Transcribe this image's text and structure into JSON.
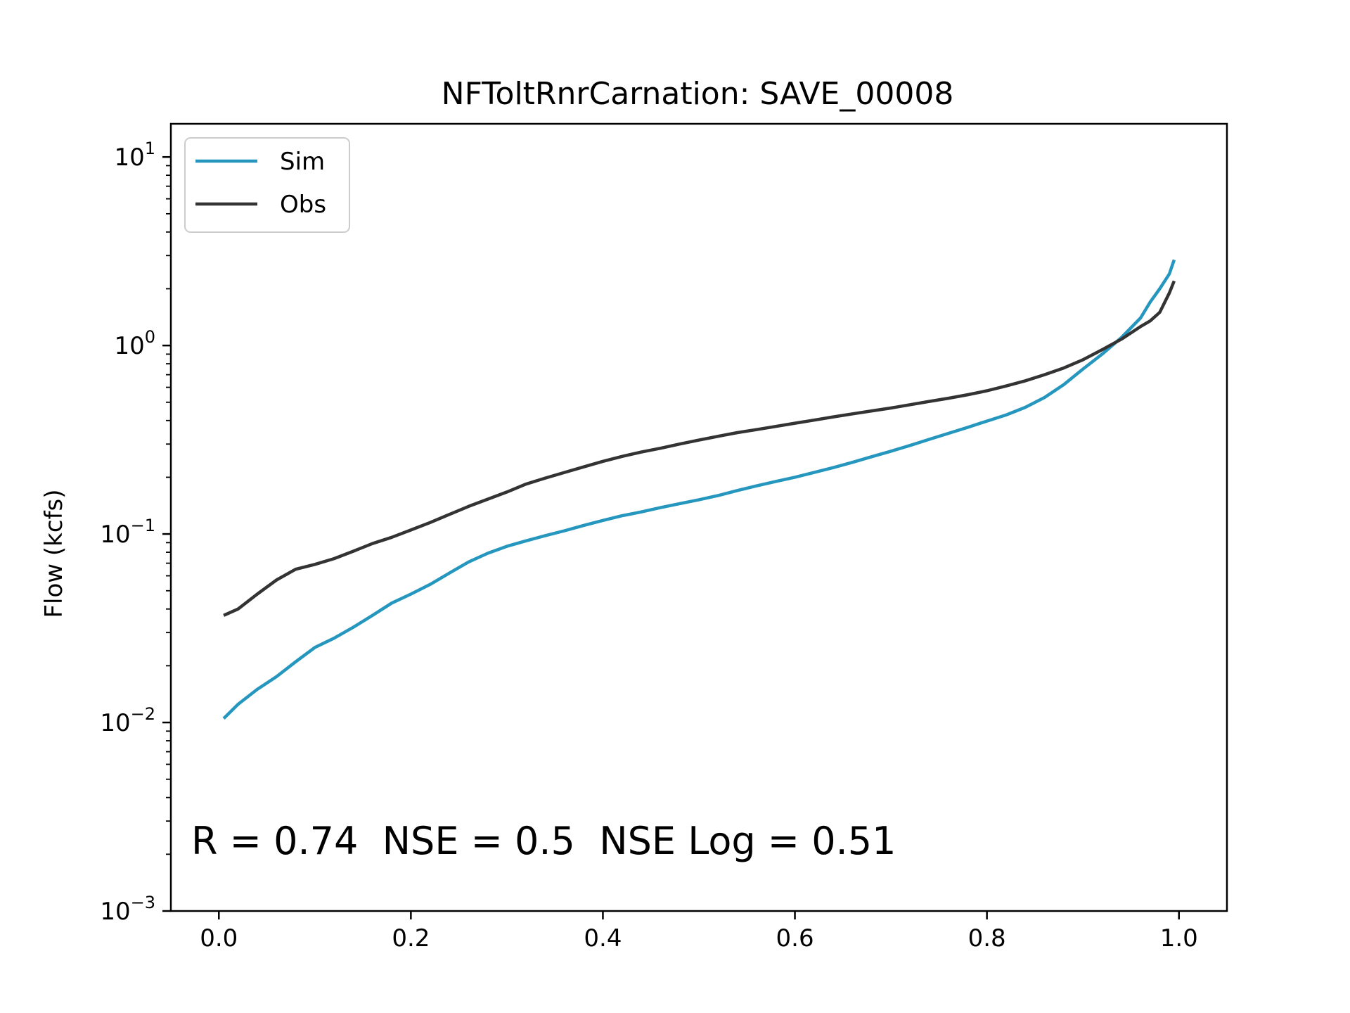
{
  "chart_data": {
    "type": "line",
    "title": "NFToltRnrCarnation: SAVE_00008",
    "xlabel": "",
    "ylabel": "Flow (kcfs)",
    "xlim": [
      -0.05,
      1.05
    ],
    "ylim": [
      0.001,
      15
    ],
    "yscale": "log",
    "grid": false,
    "legend_position": "upper-left",
    "xticks": [
      {
        "value": 0.0,
        "label": "0.0"
      },
      {
        "value": 0.2,
        "label": "0.2"
      },
      {
        "value": 0.4,
        "label": "0.4"
      },
      {
        "value": 0.6,
        "label": "0.6"
      },
      {
        "value": 0.8,
        "label": "0.8"
      },
      {
        "value": 1.0,
        "label": "1.0"
      }
    ],
    "yticks": [
      {
        "value": 0.001,
        "base": "10",
        "exp": "−3"
      },
      {
        "value": 0.01,
        "base": "10",
        "exp": "−2"
      },
      {
        "value": 0.1,
        "base": "10",
        "exp": "−1"
      },
      {
        "value": 1,
        "base": "10",
        "exp": "0"
      },
      {
        "value": 10,
        "base": "10",
        "exp": "1"
      }
    ],
    "annotation": "R = 0.74  NSE = 0.5  NSE Log = 0.51",
    "series": [
      {
        "name": "Sim",
        "color": "#2596be",
        "x": [
          0.005,
          0.02,
          0.04,
          0.06,
          0.08,
          0.1,
          0.12,
          0.14,
          0.16,
          0.18,
          0.2,
          0.22,
          0.24,
          0.26,
          0.28,
          0.3,
          0.32,
          0.34,
          0.36,
          0.38,
          0.4,
          0.42,
          0.44,
          0.46,
          0.48,
          0.5,
          0.52,
          0.54,
          0.56,
          0.58,
          0.6,
          0.62,
          0.64,
          0.66,
          0.68,
          0.7,
          0.72,
          0.74,
          0.76,
          0.78,
          0.8,
          0.82,
          0.84,
          0.86,
          0.88,
          0.9,
          0.92,
          0.94,
          0.96,
          0.97,
          0.98,
          0.99,
          0.995
        ],
        "y": [
          0.0105,
          0.0125,
          0.015,
          0.0175,
          0.021,
          0.025,
          0.028,
          0.032,
          0.037,
          0.043,
          0.048,
          0.054,
          0.062,
          0.071,
          0.079,
          0.086,
          0.092,
          0.098,
          0.104,
          0.111,
          0.118,
          0.125,
          0.131,
          0.138,
          0.145,
          0.152,
          0.16,
          0.17,
          0.18,
          0.19,
          0.2,
          0.212,
          0.225,
          0.24,
          0.257,
          0.275,
          0.295,
          0.318,
          0.342,
          0.368,
          0.397,
          0.428,
          0.47,
          0.53,
          0.62,
          0.75,
          0.9,
          1.1,
          1.4,
          1.7,
          2.0,
          2.4,
          2.85
        ]
      },
      {
        "name": "Obs",
        "color": "#333333",
        "x": [
          0.005,
          0.02,
          0.04,
          0.06,
          0.08,
          0.1,
          0.12,
          0.14,
          0.16,
          0.18,
          0.2,
          0.22,
          0.24,
          0.26,
          0.28,
          0.3,
          0.32,
          0.34,
          0.36,
          0.38,
          0.4,
          0.42,
          0.44,
          0.46,
          0.48,
          0.5,
          0.52,
          0.54,
          0.56,
          0.58,
          0.6,
          0.62,
          0.64,
          0.66,
          0.68,
          0.7,
          0.72,
          0.74,
          0.76,
          0.78,
          0.8,
          0.82,
          0.84,
          0.86,
          0.88,
          0.9,
          0.92,
          0.94,
          0.96,
          0.97,
          0.98,
          0.99,
          0.995
        ],
        "y": [
          0.037,
          0.04,
          0.048,
          0.057,
          0.065,
          0.069,
          0.074,
          0.081,
          0.089,
          0.096,
          0.105,
          0.115,
          0.127,
          0.14,
          0.153,
          0.167,
          0.184,
          0.198,
          0.212,
          0.227,
          0.243,
          0.258,
          0.272,
          0.285,
          0.3,
          0.315,
          0.33,
          0.345,
          0.358,
          0.372,
          0.387,
          0.402,
          0.418,
          0.434,
          0.45,
          0.466,
          0.485,
          0.505,
          0.525,
          0.548,
          0.575,
          0.61,
          0.65,
          0.7,
          0.76,
          0.84,
          0.95,
          1.08,
          1.26,
          1.35,
          1.5,
          1.9,
          2.2
        ]
      }
    ]
  }
}
